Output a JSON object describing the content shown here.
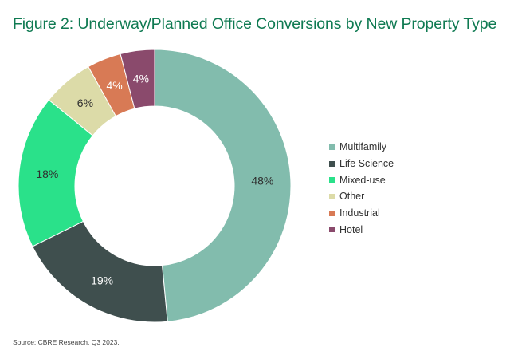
{
  "title": "Figure 2: Underway/Planned Office Conversions by New Property Type",
  "source": "Source: CBRE Research, Q3 2023.",
  "chart_data": {
    "type": "pie",
    "donut": true,
    "title": "Figure 2: Underway/Planned Office Conversions by New Property Type",
    "legend_position": "right",
    "slices": [
      {
        "label": "Multifamily",
        "value": 48,
        "display": "48%",
        "color": "#82bcad",
        "text_color": "#2f2f2f"
      },
      {
        "label": "Life Science",
        "value": 19,
        "display": "19%",
        "color": "#3f4f4e",
        "text_color": "#ffffff"
      },
      {
        "label": "Mixed-use",
        "value": 18,
        "display": "18%",
        "color": "#2ae18a",
        "text_color": "#2f2f2f"
      },
      {
        "label": "Other",
        "value": 6,
        "display": "6%",
        "color": "#dcdba8",
        "text_color": "#2f2f2f"
      },
      {
        "label": "Industrial",
        "value": 4,
        "display": "4%",
        "color": "#d87a55",
        "text_color": "#ffffff"
      },
      {
        "label": "Hotel",
        "value": 4,
        "display": "4%",
        "color": "#8a4a6c",
        "text_color": "#ffffff"
      }
    ]
  }
}
